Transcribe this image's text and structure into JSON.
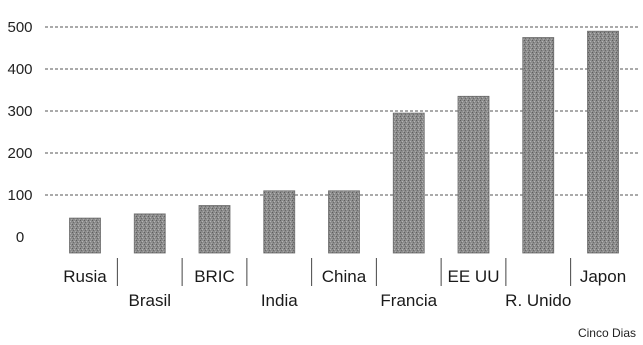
{
  "chart_data": {
    "type": "bar",
    "categories": [
      "Rusia",
      "Brasil",
      "BRIC",
      "India",
      "China",
      "Francia",
      "EE UU",
      "R. Unido",
      "Japon"
    ],
    "values": [
      45,
      55,
      75,
      110,
      110,
      295,
      335,
      475,
      490
    ],
    "ylim": [
      0,
      500
    ],
    "yticks": [
      "0",
      "100",
      "200",
      "300",
      "400",
      "500"
    ],
    "grid": true,
    "bar_color": "#8a8a8a"
  },
  "source_label": "Cinco Dias"
}
